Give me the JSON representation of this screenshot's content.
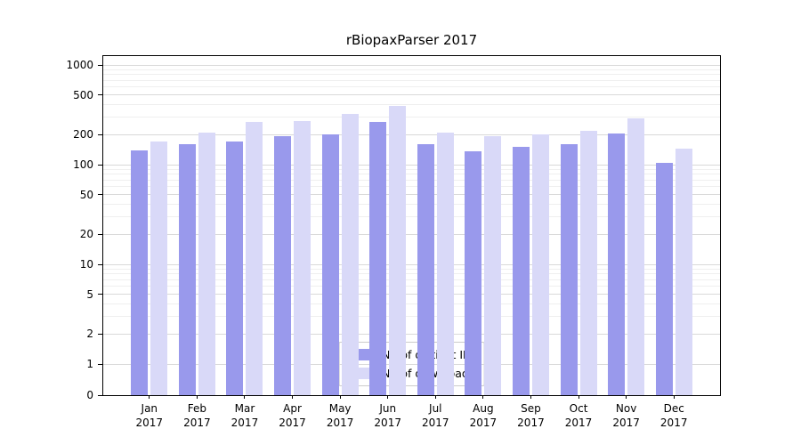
{
  "chart_data": {
    "type": "bar",
    "title": "rBiopaxParser 2017",
    "categories": [
      "Jan 2017",
      "Feb 2017",
      "Mar 2017",
      "Apr 2017",
      "May 2017",
      "Jun 2017",
      "Jul 2017",
      "Aug 2017",
      "Sep 2017",
      "Oct 2017",
      "Nov 2017",
      "Dec 2017"
    ],
    "series": [
      {
        "name": "Nb of distinct IPs",
        "color": "#9999ec",
        "values": [
          140,
          160,
          170,
          195,
          200,
          270,
          160,
          135,
          150,
          160,
          205,
          105
        ]
      },
      {
        "name": "Nb of downloads",
        "color": "#d9d9f8",
        "values": [
          170,
          210,
          270,
          275,
          320,
          390,
          210,
          195,
          200,
          220,
          290,
          145
        ]
      }
    ],
    "xlabel": "",
    "ylabel": "",
    "yscale": "symlog",
    "yticks": [
      0,
      1,
      2,
      5,
      10,
      20,
      50,
      100,
      200,
      500,
      1000
    ],
    "minor_gridlines": [
      3,
      4,
      6,
      7,
      8,
      9,
      30,
      40,
      60,
      70,
      80,
      90,
      300,
      400,
      600,
      700,
      800,
      900
    ],
    "ylim": [
      0,
      1200
    ],
    "grid": true,
    "legend_position": "lower center"
  }
}
